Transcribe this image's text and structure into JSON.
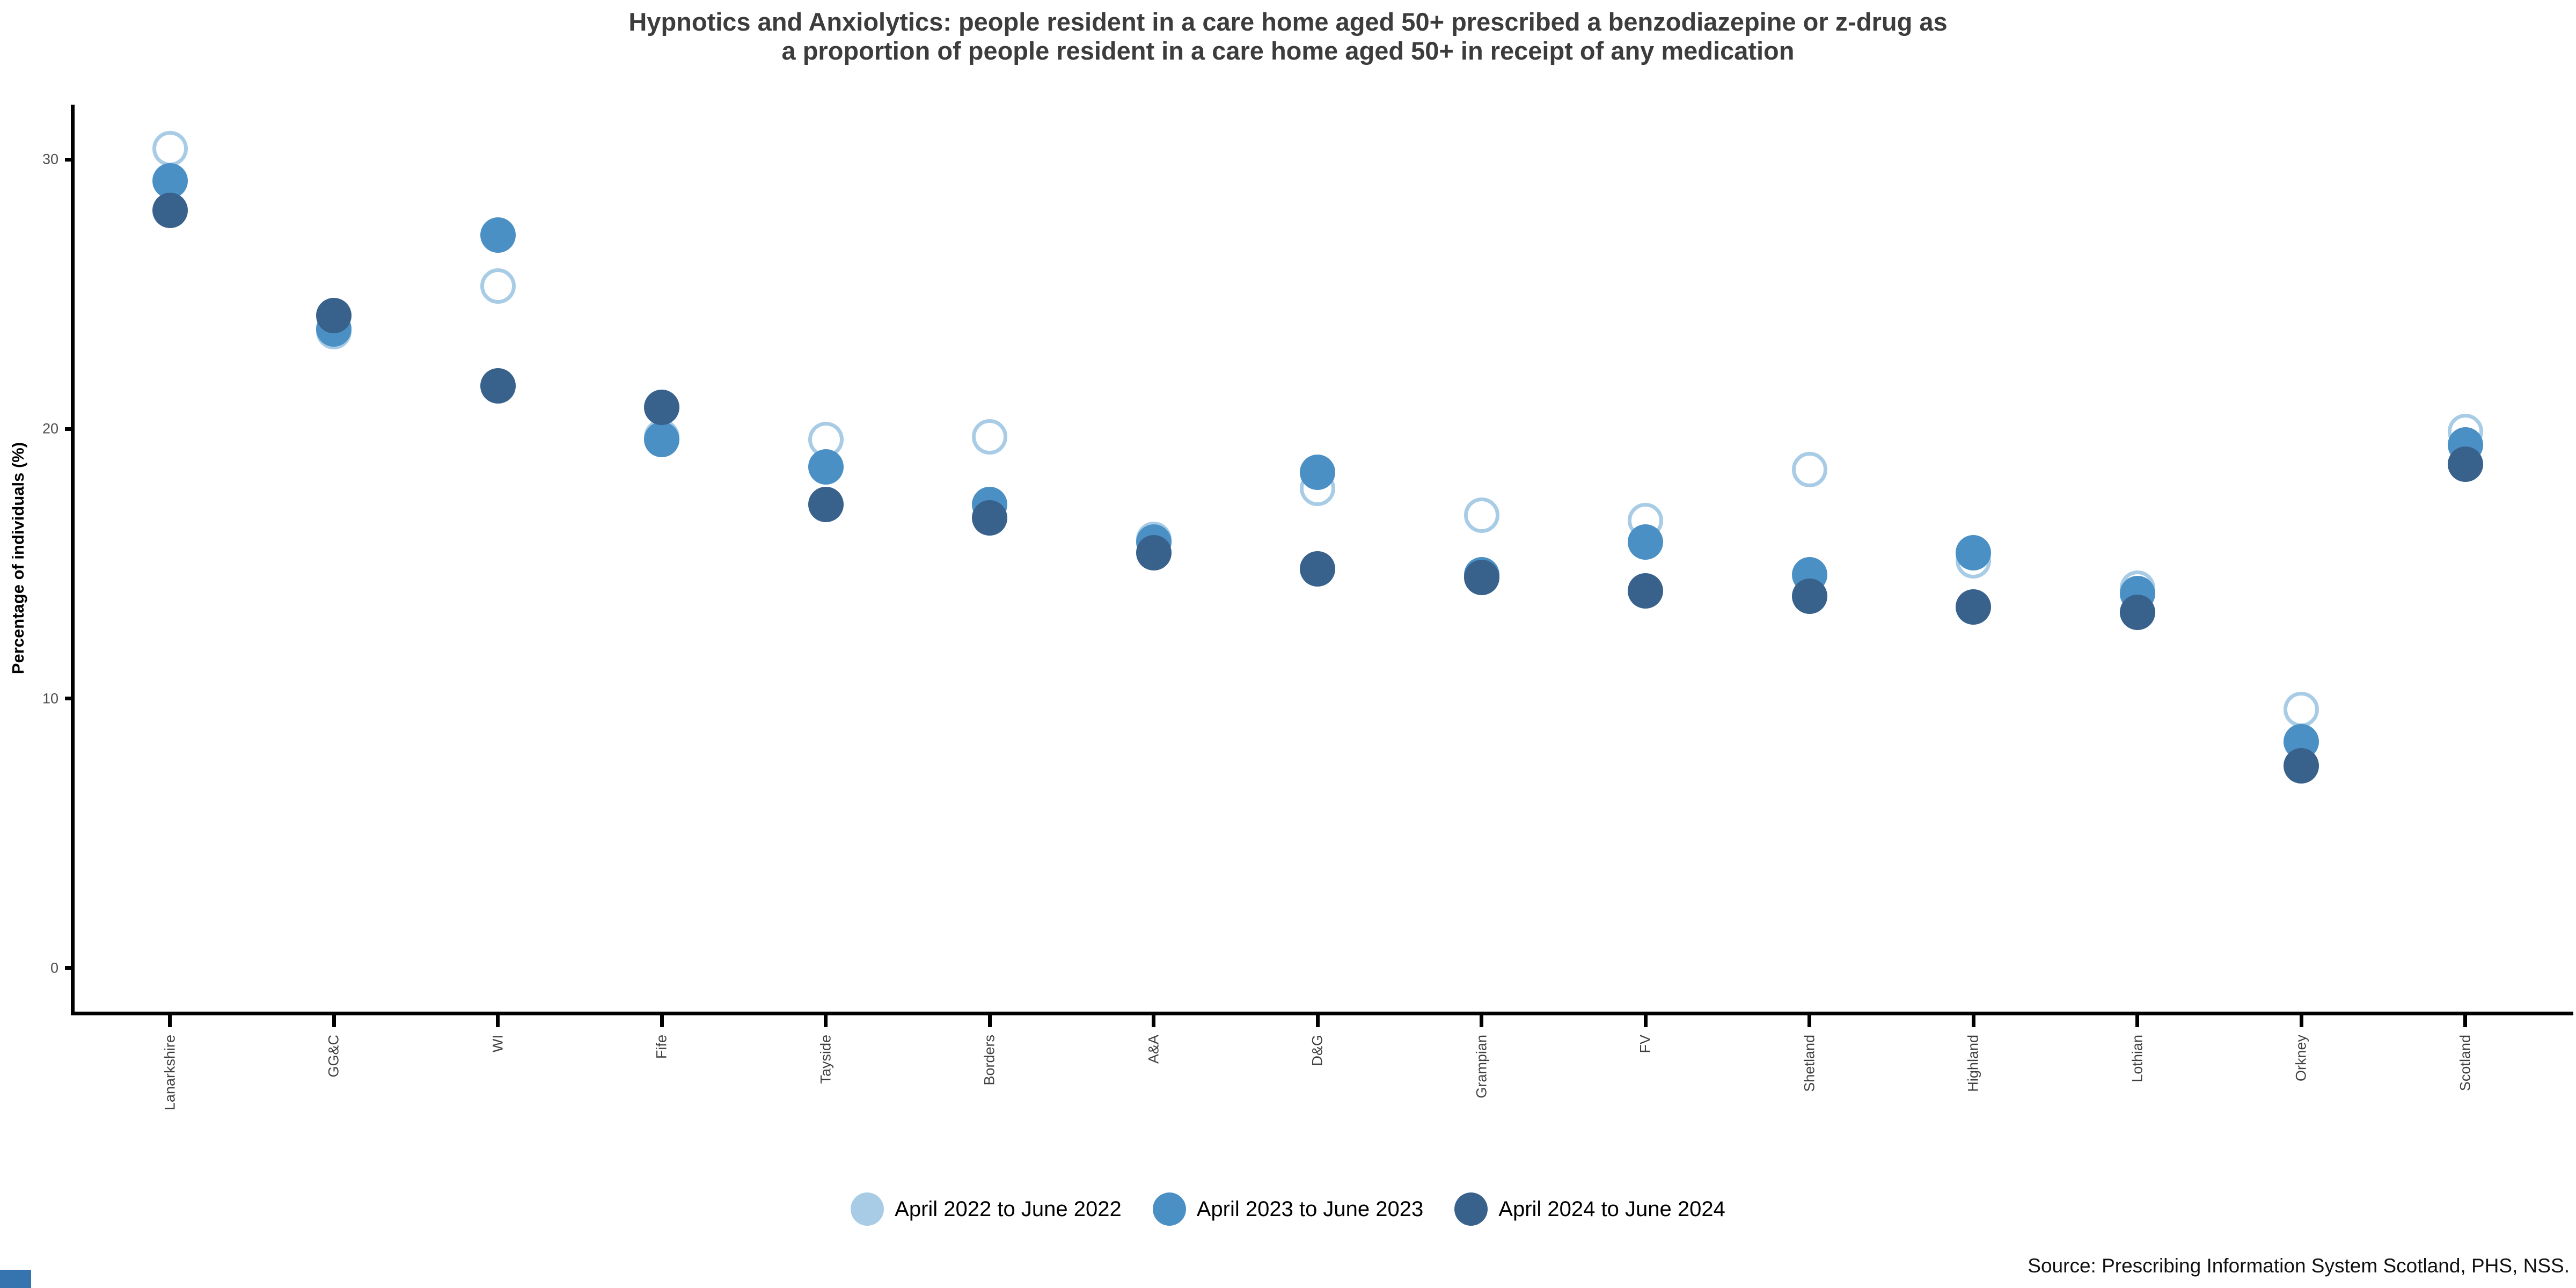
{
  "title": "Hypnotics and Anxiolytics: people resident in a care home aged 50+ prescribed a benzodiazepine or z-drug as a proportion of people resident in a care home aged 50+ in receipt of any medication",
  "source": "Source: Prescribing Information System Scotland, PHS, NSS.",
  "accent_color": "#3574AE",
  "chart_data": {
    "type": "scatter",
    "title": "Hypnotics and Anxiolytics: people resident in a care home aged 50+ prescribed a benzodiazepine or z-drug as a proportion of people resident in a care home aged 50+ in receipt of any medication",
    "xlabel": "",
    "ylabel": "Percentage of individuals (%)",
    "ylim": [
      0,
      32
    ],
    "y_ticks": [
      0,
      10,
      20,
      30
    ],
    "grid": false,
    "legend_position": "bottom",
    "categories": [
      "Lanarkshire",
      "GG&C",
      "WI",
      "Fife",
      "Tayside",
      "Borders",
      "A&A",
      "D&G",
      "Grampian",
      "FV",
      "Shetland",
      "Highland",
      "Lothian",
      "Orkney",
      "Scotland"
    ],
    "series": [
      {
        "name": "April 2022 to June 2022",
        "marker": "open-circle",
        "color": "#A8CCE6",
        "values": [
          30.4,
          23.6,
          25.3,
          19.7,
          19.6,
          19.7,
          15.9,
          17.8,
          16.8,
          16.6,
          18.5,
          15.1,
          14.1,
          9.6,
          19.9
        ]
      },
      {
        "name": "April 2023 to June 2023",
        "marker": "filled-circle",
        "color": "#4B90C5",
        "values": [
          29.2,
          23.7,
          27.2,
          19.6,
          18.6,
          17.2,
          15.8,
          18.4,
          14.6,
          15.8,
          14.6,
          15.4,
          13.9,
          8.4,
          19.4
        ]
      },
      {
        "name": "April 2024 to June 2024",
        "marker": "filled-circle",
        "color": "#38618C",
        "values": [
          28.1,
          24.2,
          21.6,
          20.8,
          17.2,
          16.7,
          15.4,
          14.8,
          14.5,
          14.0,
          13.8,
          13.4,
          13.2,
          7.5,
          18.7
        ]
      }
    ]
  }
}
